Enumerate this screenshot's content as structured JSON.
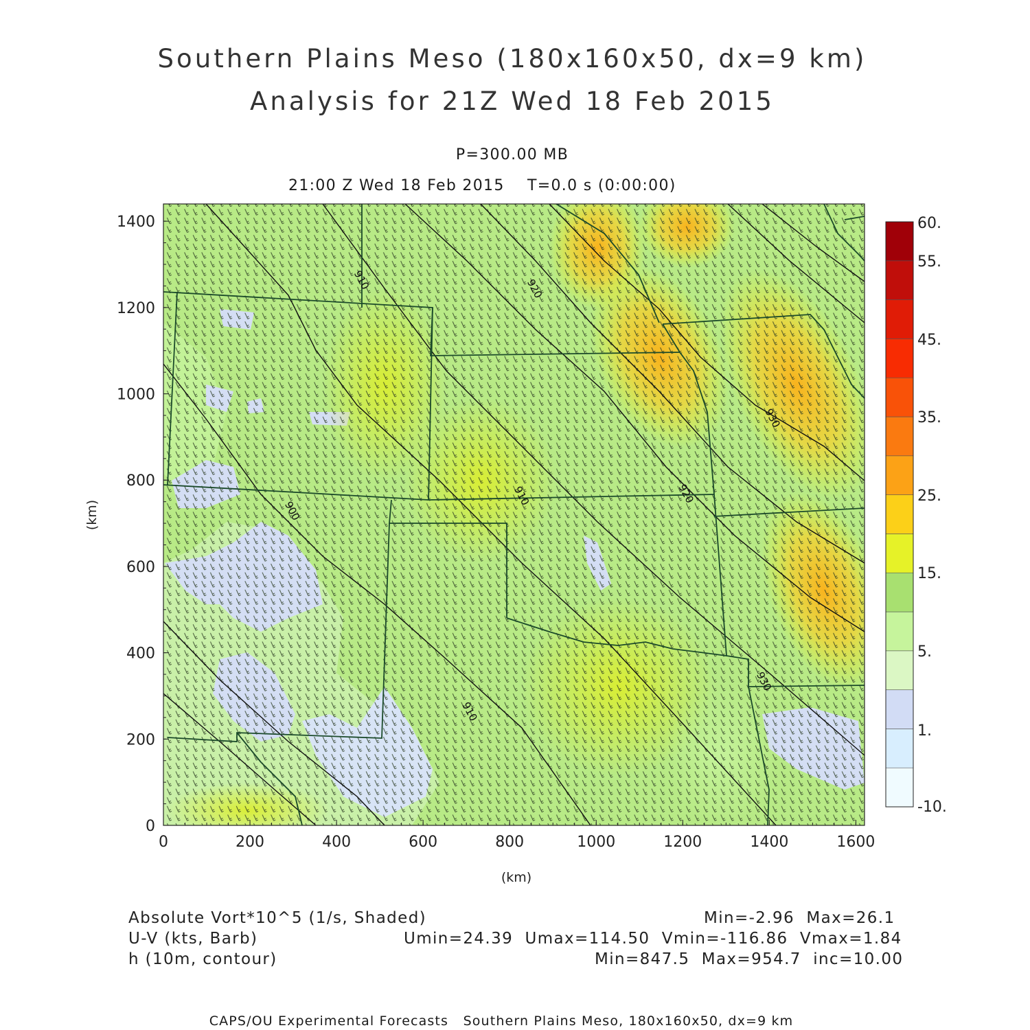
{
  "title": {
    "line1": "Southern Plains Meso (180x160x50, dx=9 km)",
    "line2": "Analysis for 21Z Wed 18 Feb 2015"
  },
  "subtitle": {
    "level": "P=300.00 MB",
    "time": "21:00 Z Wed 18 Feb 2015    T=0.0 s (0:00:00)"
  },
  "chart_data": {
    "type": "heatmap",
    "xlabel": "(km)",
    "ylabel": "(km)",
    "xlim": [
      0,
      1620
    ],
    "ylim": [
      0,
      1440
    ],
    "x_ticks": [
      "0",
      "200",
      "400",
      "600",
      "800",
      "1000",
      "1200",
      "1400",
      "1600"
    ],
    "y_ticks": [
      "0",
      "200",
      "400",
      "600",
      "800",
      "1000",
      "1200",
      "1400"
    ],
    "colorbar": {
      "labels": [
        "60.",
        "55.",
        "45.",
        "35.",
        "25.",
        "15.",
        "5.",
        "1.",
        "-10."
      ],
      "colors": [
        "#f0fbff",
        "#d8eefe",
        "#d2dcf5",
        "#dbf7c4",
        "#c6f49c",
        "#a8e070",
        "#e6f228",
        "#fcd018",
        "#fca216",
        "#fa7a10",
        "#f95208",
        "#f82c02",
        "#e01c06",
        "#c00e0a",
        "#a00008"
      ]
    },
    "contour_labels": [
      {
        "text": "910",
        "x": 440,
        "y": 1280
      },
      {
        "text": "920",
        "x": 840,
        "y": 1260
      },
      {
        "text": "900",
        "x": 280,
        "y": 745
      },
      {
        "text": "910",
        "x": 810,
        "y": 780
      },
      {
        "text": "920",
        "x": 1190,
        "y": 785
      },
      {
        "text": "930",
        "x": 1390,
        "y": 960
      },
      {
        "text": "910",
        "x": 690,
        "y": 280
      },
      {
        "text": "930",
        "x": 1370,
        "y": 350
      }
    ]
  },
  "legend": {
    "field1": "Absolute Vort*10^5 (1/s, Shaded)",
    "field1_stats": "Min=-2.96  Max=26.1",
    "field2": "U-V (kts, Barb)",
    "field2_stats": "Umin=24.39  Umax=114.50  Vmin=-116.86  Vmax=1.84",
    "field3": "h (10m, contour)",
    "field3_stats": "Min=847.5  Max=954.7  inc=10.00"
  },
  "footer": "CAPS/OU Experimental Forecasts   Southern Plains Meso, 180x160x50, dx=9 km"
}
